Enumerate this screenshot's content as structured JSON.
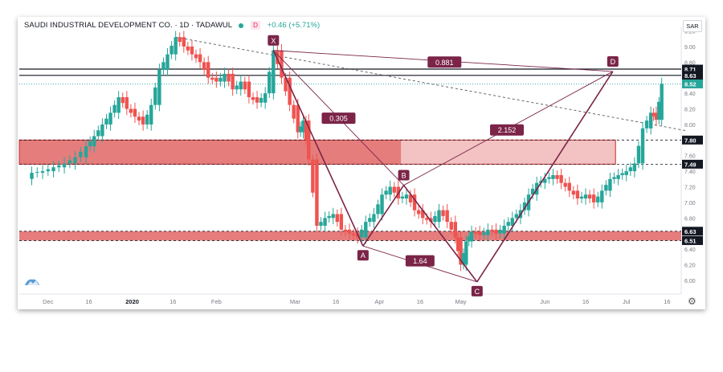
{
  "header": {
    "title": "SAUDI INDUSTRIAL DEVELOPMENT CO.",
    "interval": "1D",
    "exchange": "TADAWUL",
    "badge": "D",
    "change": "+0.46 (+5.71%)",
    "currency": "SAR"
  },
  "colors": {
    "up": "#26a69a",
    "down": "#ef5350",
    "zone": "#e06666",
    "harmonic": "#7b2448",
    "axis_text": "#787b86"
  },
  "chart_data": {
    "type": "candlestick",
    "y_axis": {
      "min": 5.9,
      "max": 9.25,
      "ticks": [
        "9.20",
        "9.00",
        "8.80",
        "8.60",
        "8.40",
        "8.20",
        "8.00",
        "7.80",
        "7.60",
        "7.40",
        "7.20",
        "7.00",
        "6.80",
        "6.60",
        "6.40",
        "6.20",
        "6.00"
      ],
      "tick_values": [
        9.2,
        9.0,
        8.8,
        8.6,
        8.4,
        8.2,
        8.0,
        7.8,
        7.6,
        7.4,
        7.2,
        7.0,
        6.8,
        6.6,
        6.4,
        6.2,
        6.0
      ]
    },
    "x_axis": {
      "labels": [
        "Dec",
        "16",
        "2020",
        "16",
        "Feb",
        "Mar",
        "16",
        "Apr",
        "16",
        "May",
        "Jun",
        "16",
        "Jul",
        "16"
      ],
      "label_days": [
        10,
        25,
        41,
        56,
        72,
        101,
        116,
        132,
        147,
        162,
        193,
        208,
        223,
        238
      ],
      "day_range": [
        0,
        245
      ]
    },
    "close_series": [
      [
        0,
        7.3
      ],
      [
        4,
        7.38
      ],
      [
        8,
        7.4
      ],
      [
        12,
        7.45
      ],
      [
        16,
        7.5
      ],
      [
        20,
        7.58
      ],
      [
        24,
        7.72
      ],
      [
        27,
        7.85
      ],
      [
        30,
        8.0
      ],
      [
        33,
        8.15
      ],
      [
        36,
        8.35
      ],
      [
        39,
        8.2
      ],
      [
        42,
        8.1
      ],
      [
        45,
        8.0
      ],
      [
        48,
        8.25
      ],
      [
        51,
        8.7
      ],
      [
        54,
        8.9
      ],
      [
        57,
        9.12
      ],
      [
        60,
        9.0
      ],
      [
        63,
        8.9
      ],
      [
        66,
        8.8
      ],
      [
        69,
        8.6
      ],
      [
        72,
        8.55
      ],
      [
        75,
        8.65
      ],
      [
        78,
        8.45
      ],
      [
        81,
        8.55
      ],
      [
        84,
        8.35
      ],
      [
        87,
        8.28
      ],
      [
        90,
        8.4
      ],
      [
        93,
        8.95
      ],
      [
        96,
        8.6
      ],
      [
        99,
        8.25
      ],
      [
        102,
        7.9
      ],
      [
        104,
        8.05
      ],
      [
        106,
        7.55
      ],
      [
        109,
        6.7
      ],
      [
        112,
        6.8
      ],
      [
        115,
        6.85
      ],
      [
        118,
        6.65
      ],
      [
        121,
        6.6
      ],
      [
        124,
        6.55
      ],
      [
        127,
        6.75
      ],
      [
        130,
        6.85
      ],
      [
        133,
        7.1
      ],
      [
        136,
        7.2
      ],
      [
        139,
        7.05
      ],
      [
        142,
        7.1
      ],
      [
        145,
        6.9
      ],
      [
        148,
        6.8
      ],
      [
        151,
        6.75
      ],
      [
        154,
        6.9
      ],
      [
        157,
        6.75
      ],
      [
        160,
        6.55
      ],
      [
        162,
        6.2
      ],
      [
        164,
        6.5
      ],
      [
        166,
        6.62
      ],
      [
        169,
        6.58
      ],
      [
        172,
        6.65
      ],
      [
        175,
        6.6
      ],
      [
        178,
        6.7
      ],
      [
        181,
        6.8
      ],
      [
        184,
        6.9
      ],
      [
        187,
        7.1
      ],
      [
        190,
        7.25
      ],
      [
        193,
        7.3
      ],
      [
        196,
        7.35
      ],
      [
        199,
        7.25
      ],
      [
        202,
        7.15
      ],
      [
        205,
        7.05
      ],
      [
        208,
        7.1
      ],
      [
        211,
        7.0
      ],
      [
        214,
        7.15
      ],
      [
        217,
        7.3
      ],
      [
        220,
        7.35
      ],
      [
        223,
        7.4
      ],
      [
        226,
        7.5
      ],
      [
        229,
        7.95
      ],
      [
        232,
        8.15
      ],
      [
        234,
        8.06
      ],
      [
        236,
        8.52
      ]
    ],
    "zones": [
      {
        "top": 7.8,
        "bottom": 7.49
      },
      {
        "top": 6.63,
        "bottom": 6.51
      }
    ],
    "horizontal_levels": [
      {
        "value": 8.71,
        "label": "8.71"
      },
      {
        "value": 8.63,
        "label": "8.63"
      },
      {
        "value": 7.8,
        "label": "7.80"
      },
      {
        "value": 7.49,
        "label": "7.49"
      },
      {
        "value": 6.63,
        "label": "6.63"
      },
      {
        "value": 6.51,
        "label": "6.51"
      }
    ],
    "last_price": {
      "value": 8.52,
      "label": "8.52"
    },
    "trendline": {
      "x1": 57,
      "y1": 9.12,
      "x2": 245,
      "y2": 7.92
    },
    "pattern_points": [
      {
        "name": "X",
        "day": 93,
        "price": 8.95
      },
      {
        "name": "A",
        "day": 126,
        "price": 6.44
      },
      {
        "name": "B",
        "day": 141,
        "price": 7.22
      },
      {
        "name": "C",
        "day": 168,
        "price": 5.98
      },
      {
        "name": "D",
        "day": 218,
        "price": 8.68
      }
    ],
    "ratios": [
      {
        "label": "0.305",
        "day": 117,
        "price": 8.08
      },
      {
        "label": "0.881",
        "day": 156,
        "price": 8.8
      },
      {
        "label": "2.152",
        "day": 179,
        "price": 7.93
      },
      {
        "label": "1.64",
        "day": 147,
        "price": 6.25
      }
    ]
  }
}
